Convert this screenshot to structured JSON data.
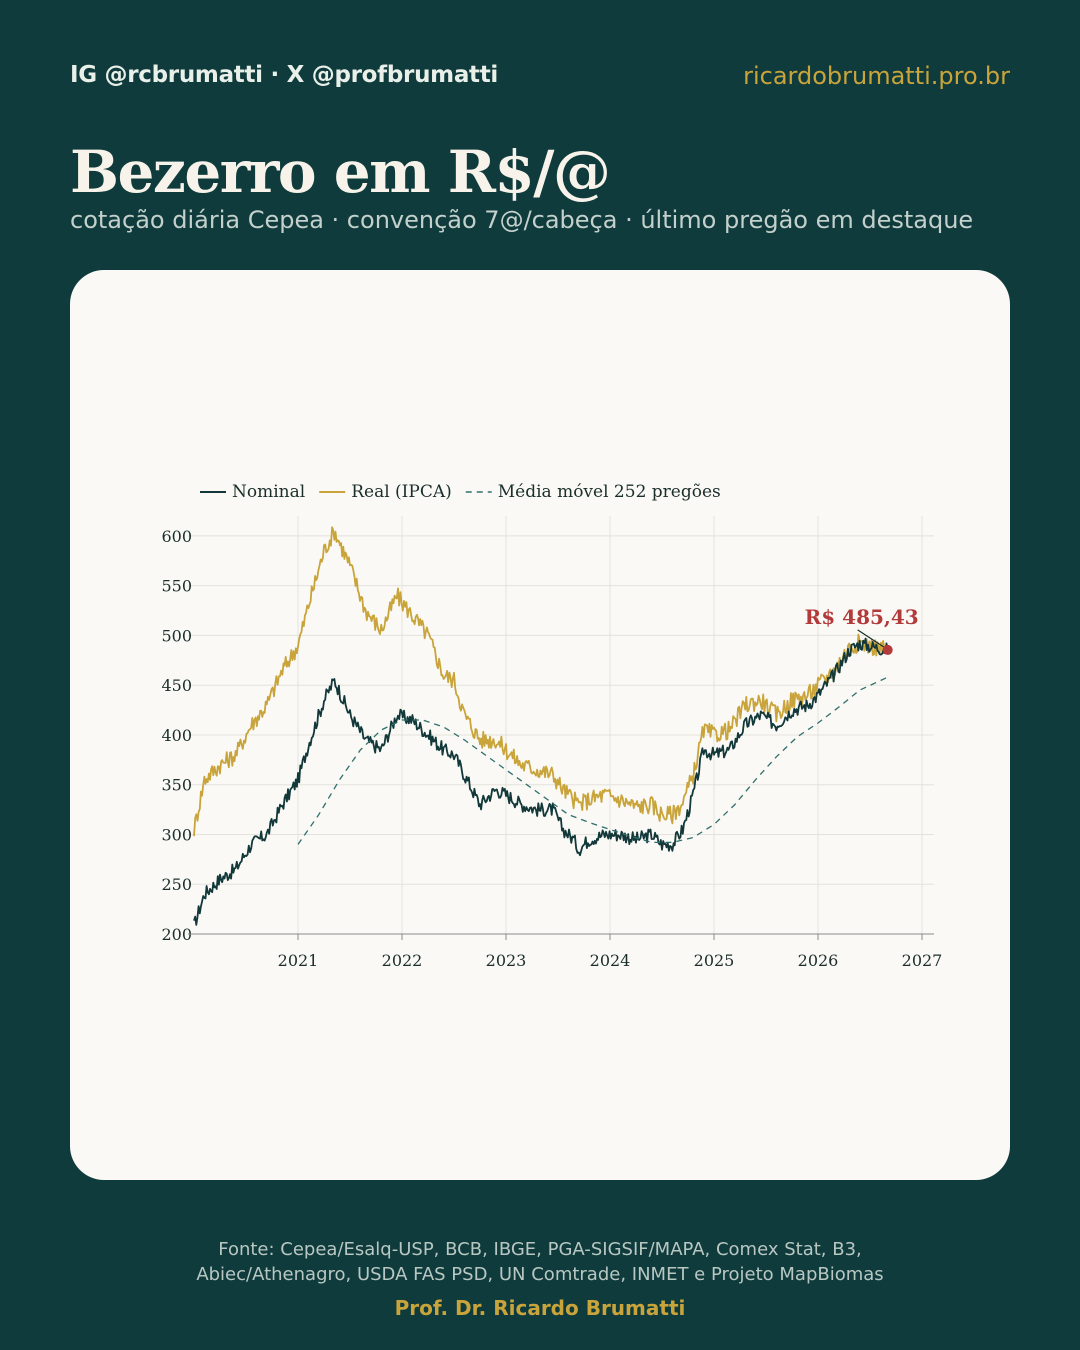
{
  "header": {
    "handles": "IG @rcbrumatti · X @profbrumatti",
    "website": "ricardobrumatti.pro.br",
    "title": "Bezerro em R$/@",
    "subtitle": "cotação diária Cepea · convenção 7@/cabeça · último pregão em destaque"
  },
  "colors": {
    "background": "#0f3b3c",
    "card": "#faf9f5",
    "nominal": "#12383a",
    "real": "#c9a43b",
    "moving_average": "#2f6f6c",
    "highlight": "#b23a3a",
    "accent": "#c9a43b"
  },
  "chart_data": {
    "type": "line",
    "legend_position": "top-left",
    "grid": true,
    "xlim": [
      2020.0,
      2027.0
    ],
    "ylim": [
      200,
      620
    ],
    "x_ticks": [
      2021,
      2022,
      2023,
      2024,
      2025,
      2026,
      2027
    ],
    "x_tick_labels": [
      "2021",
      "2022",
      "2023",
      "2024",
      "2025",
      "2026",
      "2027"
    ],
    "y_ticks": [
      200,
      250,
      300,
      350,
      400,
      450,
      500,
      550,
      600
    ],
    "y_tick_labels": [
      "200",
      "250",
      "300",
      "350",
      "400",
      "450",
      "500",
      "550",
      "600"
    ],
    "series": [
      {
        "name": "Nominal",
        "style": "solid",
        "color": "#12383a",
        "points": [
          [
            2020.0,
            208
          ],
          [
            2020.1,
            240
          ],
          [
            2020.25,
            255
          ],
          [
            2020.4,
            265
          ],
          [
            2020.55,
            290
          ],
          [
            2020.7,
            300
          ],
          [
            2020.85,
            330
          ],
          [
            2021.0,
            355
          ],
          [
            2021.1,
            390
          ],
          [
            2021.25,
            435
          ],
          [
            2021.35,
            455
          ],
          [
            2021.5,
            420
          ],
          [
            2021.65,
            395
          ],
          [
            2021.8,
            385
          ],
          [
            2021.95,
            420
          ],
          [
            2022.1,
            415
          ],
          [
            2022.25,
            400
          ],
          [
            2022.4,
            385
          ],
          [
            2022.5,
            380
          ],
          [
            2022.6,
            360
          ],
          [
            2022.75,
            330
          ],
          [
            2022.9,
            345
          ],
          [
            2023.0,
            340
          ],
          [
            2023.15,
            330
          ],
          [
            2023.3,
            325
          ],
          [
            2023.45,
            325
          ],
          [
            2023.55,
            305
          ],
          [
            2023.65,
            295
          ],
          [
            2023.7,
            285
          ],
          [
            2023.8,
            295
          ],
          [
            2023.95,
            300
          ],
          [
            2024.1,
            300
          ],
          [
            2024.25,
            295
          ],
          [
            2024.4,
            300
          ],
          [
            2024.5,
            290
          ],
          [
            2024.6,
            290
          ],
          [
            2024.7,
            305
          ],
          [
            2024.8,
            340
          ],
          [
            2024.9,
            385
          ],
          [
            2025.0,
            380
          ],
          [
            2025.15,
            385
          ],
          [
            2025.3,
            410
          ],
          [
            2025.45,
            420
          ],
          [
            2025.6,
            410
          ],
          [
            2025.75,
            425
          ],
          [
            2025.9,
            430
          ],
          [
            2026.0,
            440
          ],
          [
            2026.15,
            460
          ],
          [
            2026.3,
            485
          ],
          [
            2026.4,
            492
          ],
          [
            2026.55,
            488
          ],
          [
            2026.67,
            485.43
          ]
        ]
      },
      {
        "name": "Real (IPCA)",
        "style": "solid",
        "color": "#c9a43b",
        "points": [
          [
            2020.0,
            305
          ],
          [
            2020.1,
            355
          ],
          [
            2020.25,
            370
          ],
          [
            2020.4,
            380
          ],
          [
            2020.55,
            410
          ],
          [
            2020.7,
            430
          ],
          [
            2020.85,
            465
          ],
          [
            2021.0,
            490
          ],
          [
            2021.1,
            530
          ],
          [
            2021.25,
            585
          ],
          [
            2021.35,
            605
          ],
          [
            2021.5,
            570
          ],
          [
            2021.65,
            525
          ],
          [
            2021.8,
            505
          ],
          [
            2021.95,
            540
          ],
          [
            2022.1,
            520
          ],
          [
            2022.25,
            500
          ],
          [
            2022.4,
            460
          ],
          [
            2022.5,
            455
          ],
          [
            2022.6,
            420
          ],
          [
            2022.75,
            395
          ],
          [
            2022.9,
            395
          ],
          [
            2023.0,
            385
          ],
          [
            2023.15,
            370
          ],
          [
            2023.3,
            365
          ],
          [
            2023.45,
            360
          ],
          [
            2023.55,
            345
          ],
          [
            2023.65,
            335
          ],
          [
            2023.7,
            330
          ],
          [
            2023.8,
            335
          ],
          [
            2023.95,
            340
          ],
          [
            2024.1,
            335
          ],
          [
            2024.25,
            328
          ],
          [
            2024.4,
            330
          ],
          [
            2024.5,
            320
          ],
          [
            2024.6,
            320
          ],
          [
            2024.7,
            332
          ],
          [
            2024.8,
            360
          ],
          [
            2024.9,
            405
          ],
          [
            2025.0,
            400
          ],
          [
            2025.15,
            405
          ],
          [
            2025.3,
            430
          ],
          [
            2025.45,
            435
          ],
          [
            2025.6,
            420
          ],
          [
            2025.75,
            435
          ],
          [
            2025.9,
            440
          ],
          [
            2026.0,
            450
          ],
          [
            2026.15,
            465
          ],
          [
            2026.3,
            488
          ],
          [
            2026.4,
            493
          ],
          [
            2026.55,
            488
          ],
          [
            2026.67,
            486
          ]
        ]
      },
      {
        "name": "Média móvel 252 pregões",
        "style": "dashed",
        "color": "#2f6f6c",
        "points": [
          [
            2021.0,
            290
          ],
          [
            2021.2,
            320
          ],
          [
            2021.4,
            355
          ],
          [
            2021.6,
            385
          ],
          [
            2021.8,
            405
          ],
          [
            2022.0,
            415
          ],
          [
            2022.2,
            415
          ],
          [
            2022.4,
            408
          ],
          [
            2022.6,
            395
          ],
          [
            2022.8,
            380
          ],
          [
            2023.0,
            365
          ],
          [
            2023.2,
            350
          ],
          [
            2023.4,
            335
          ],
          [
            2023.6,
            320
          ],
          [
            2023.8,
            312
          ],
          [
            2024.0,
            305
          ],
          [
            2024.2,
            298
          ],
          [
            2024.4,
            292
          ],
          [
            2024.6,
            292
          ],
          [
            2024.8,
            297
          ],
          [
            2025.0,
            310
          ],
          [
            2025.2,
            330
          ],
          [
            2025.4,
            355
          ],
          [
            2025.6,
            378
          ],
          [
            2025.8,
            398
          ],
          [
            2026.0,
            412
          ],
          [
            2026.2,
            428
          ],
          [
            2026.4,
            445
          ],
          [
            2026.67,
            458
          ]
        ]
      }
    ],
    "annotation": {
      "text": "R$ 485,43",
      "x": 2026.67,
      "y": 485.43
    }
  },
  "footer": {
    "source_line1": "Fonte: Cepea/Esalq-USP, BCB, IBGE, PGA-SIGSIF/MAPA, Comex Stat, B3,",
    "source_line2": "Abiec/Athenagro, USDA FAS PSD, UN Comtrade, INMET e Projeto MapBiomas",
    "author": "Prof. Dr. Ricardo Brumatti"
  }
}
